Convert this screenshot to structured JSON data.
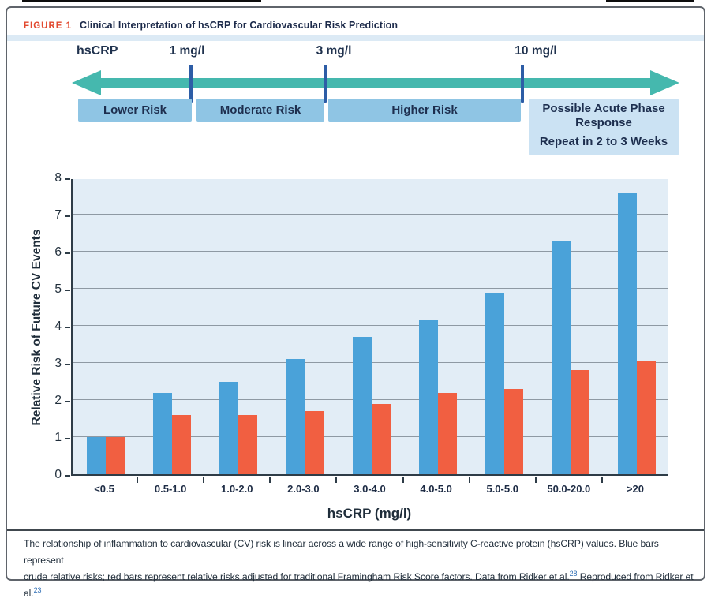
{
  "figure": {
    "label": "FIGURE 1",
    "title": "Clinical Interpretation of hsCRP for Cardiovascular Risk Prediction"
  },
  "scale_diagram": {
    "axis_label": "hsCRP",
    "thresholds": [
      "1 mg/l",
      "3 mg/l",
      "10 mg/l"
    ],
    "zones": [
      "Lower Risk",
      "Moderate Risk",
      "Higher Risk"
    ],
    "acute": {
      "line1": "Possible Acute Phase Response",
      "line2": "Repeat in 2 to 3 Weeks"
    },
    "arrow_color": "#45b8ae",
    "tick_color": "#2d5da6",
    "zone_color": "#8fc5e4",
    "acute_zone_color": "#cbe2f3"
  },
  "chart_data": {
    "type": "bar",
    "title": "",
    "xlabel": "hsCRP (mg/l)",
    "ylabel": "Relative Risk of Future CV Events",
    "categories": [
      "<0.5",
      "0.5-1.0",
      "1.0-2.0",
      "2.0-3.0",
      "3.0-4.0",
      "4.0-5.0",
      "5.0-5.0",
      "50.0-20.0",
      ">20"
    ],
    "series": [
      {
        "name": "Crude relative risk (blue bars)",
        "color": "#4aa2d9",
        "values": [
          1.0,
          2.2,
          2.5,
          3.1,
          3.7,
          4.15,
          4.9,
          6.3,
          7.6
        ]
      },
      {
        "name": "Relative risk adjusted for Framingham Risk Score factors (red bars)",
        "color": "#f15f41",
        "values": [
          1.0,
          1.6,
          1.6,
          1.7,
          1.9,
          2.2,
          2.3,
          2.8,
          3.05
        ]
      }
    ],
    "ylim": [
      0,
      8
    ],
    "ytick_step": 1,
    "grid": true,
    "legend_position": "none",
    "plot_background": "#e2edf6"
  },
  "caption": {
    "line1": "The relationship of inflammation to cardiovascular (CV) risk is linear across a wide range of high-sensitivity C-reactive protein (hsCRP) values. Blue bars represent",
    "line2_part1": "crude relative risks; red bars represent relative risks adjusted for traditional Framingham Risk Score factors. Data from Ridker et al.",
    "ref1": "28",
    "line2_part2": " Reproduced from Ridker et al.",
    "ref2": "23"
  },
  "colors": {
    "figure_label_red": "#e2492f",
    "title_navy": "#1c2a4a",
    "citation_blue": "#2f6eb5"
  }
}
